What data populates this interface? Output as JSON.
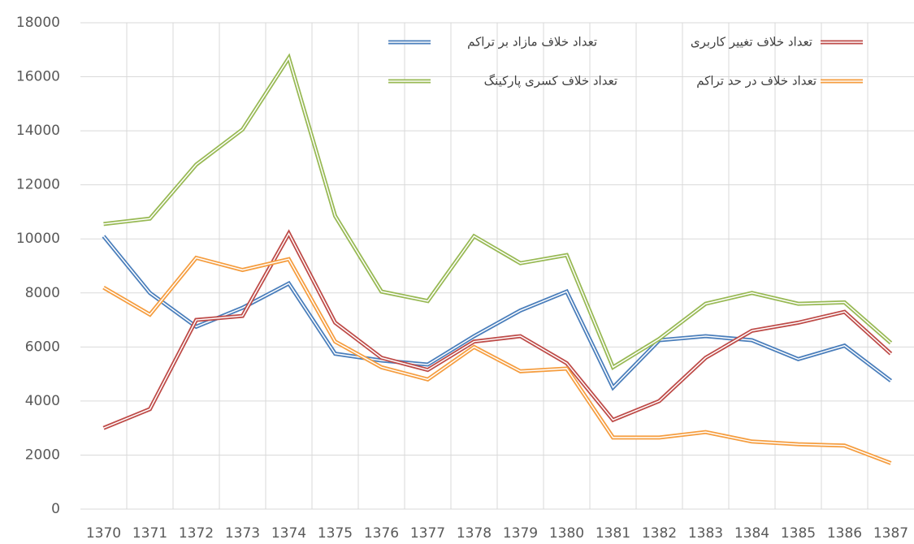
{
  "chart_data": {
    "type": "line",
    "categories": [
      "1370",
      "1371",
      "1372",
      "1373",
      "1374",
      "1375",
      "1376",
      "1377",
      "1378",
      "1379",
      "1380",
      "1381",
      "1382",
      "1383",
      "1384",
      "1385",
      "1386",
      "1387"
    ],
    "series": [
      {
        "name": "تعداد خلاف مازاد بر تراکم",
        "color": "#4a7ebb",
        "values": [
          10100,
          8000,
          6750,
          7450,
          8350,
          5750,
          5500,
          5350,
          6400,
          7350,
          8050,
          4500,
          6250,
          6400,
          6250,
          5550,
          6050,
          4750
        ]
      },
      {
        "name": "تعداد خلاف تغییر کاربری",
        "color": "#be4b48",
        "values": [
          3000,
          3700,
          7000,
          7150,
          10200,
          6900,
          5600,
          5150,
          6200,
          6400,
          5400,
          3300,
          4000,
          5600,
          6600,
          6900,
          7300,
          5750
        ]
      },
      {
        "name": "تعداد خلاف کسری پارکینگ",
        "color": "#98b954",
        "values": [
          10550,
          10750,
          12750,
          14050,
          16700,
          10850,
          8050,
          7700,
          10100,
          9100,
          9400,
          5250,
          6300,
          7600,
          8000,
          7600,
          7650,
          6150
        ]
      },
      {
        "name": "تعداد خلاف در حد تراکم",
        "color": "#f59d3f",
        "values": [
          8200,
          7200,
          9300,
          8850,
          9250,
          6200,
          5250,
          4800,
          6000,
          5100,
          5200,
          2650,
          2650,
          2850,
          2500,
          2400,
          2350,
          1700
        ]
      }
    ],
    "ylim": [
      0,
      18000
    ],
    "yticks": [
      0,
      2000,
      4000,
      6000,
      8000,
      10000,
      12000,
      14000,
      16000,
      18000
    ],
    "grid": true
  }
}
